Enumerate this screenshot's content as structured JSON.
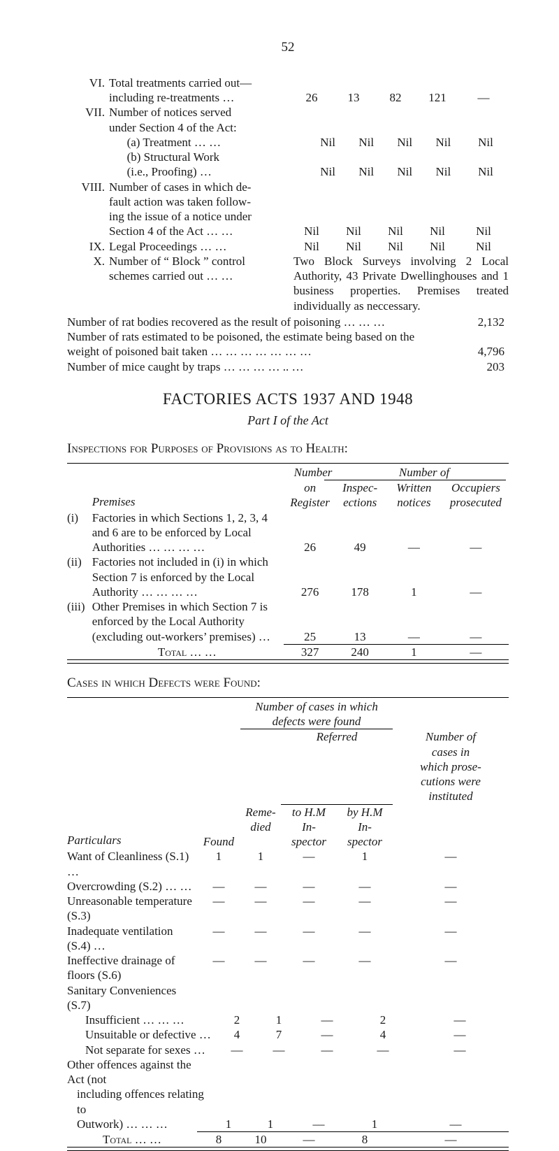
{
  "page_number": "52",
  "top_items": [
    {
      "num": "VI.",
      "label": "Total treatments carried out—",
      "cols": [
        "",
        "",
        "",
        "",
        ""
      ]
    },
    {
      "num": "",
      "label": "including re-treatments   …",
      "cols": [
        "26",
        "13",
        "82",
        "121",
        "—"
      ]
    },
    {
      "num": "VII.",
      "label": "Number of notices served",
      "cols": [
        "",
        "",
        "",
        "",
        ""
      ]
    },
    {
      "num": "",
      "label": "under Section 4 of the Act:",
      "cols": [
        "",
        "",
        "",
        "",
        ""
      ]
    },
    {
      "num": "",
      "label": "(a) Treatment      …      …",
      "indent": true,
      "cols": [
        "Nil",
        "Nil",
        "Nil",
        "Nil",
        "Nil"
      ]
    },
    {
      "num": "",
      "label": "(b) Structural Work",
      "indent": true,
      "cols": [
        "",
        "",
        "",
        "",
        ""
      ]
    },
    {
      "num": "",
      "label": "     (i.e., Proofing)      …",
      "indent": true,
      "cols": [
        "Nil",
        "Nil",
        "Nil",
        "Nil",
        "Nil"
      ]
    },
    {
      "num": "VIII.",
      "label": "Number of cases in which de-",
      "cols": [
        "",
        "",
        "",
        "",
        ""
      ]
    },
    {
      "num": "",
      "label": "fault action was taken follow-",
      "cols": [
        "",
        "",
        "",
        "",
        ""
      ]
    },
    {
      "num": "",
      "label": "ing the issue of a notice under",
      "cols": [
        "",
        "",
        "",
        "",
        ""
      ]
    },
    {
      "num": "",
      "label": "Section 4 of the Act …   …",
      "cols": [
        "Nil",
        "Nil",
        "Nil",
        "Nil",
        "Nil"
      ]
    },
    {
      "num": "IX.",
      "label": "Legal Proceedings   …   …",
      "cols": [
        "Nil",
        "Nil",
        "Nil",
        "Nil",
        "Nil"
      ]
    }
  ],
  "item_x": {
    "num": "X.",
    "label": "Number of “ Block ” control schemes carried out …   …",
    "note": "Two Block Surveys involving 2 Local Authority, 43 Private Dwellinghouses and 1 business properties. Premises treated individually as neccessary."
  },
  "summary_lines": [
    {
      "text": "Number of rat bodies recovered as the result of poisoning      …      …      …",
      "val": "2,132"
    },
    {
      "text": "Number of rats estimated to be poisoned, the estimate being based on the",
      "val": ""
    },
    {
      "text": "   weight of poisoned bait taken …      …      …      …      …      …      …",
      "val": "4,796"
    },
    {
      "text": "Number of mice caught by traps                     …      …      …      …      ..      …",
      "val": "203"
    }
  ],
  "h2": "FACTORIES ACTS 1937 AND 1948",
  "subtitle": "Part I of the Act",
  "t1_title": "Inspections for Purposes of Provisions as to Health:",
  "t1_head": {
    "number_of": "Number of",
    "premises": "Premises",
    "number_on_register": "Number\non\nRegister",
    "inspections": "Inspec-\nections",
    "written": "Written\nnotices",
    "occupiers": "Occupiers\nprosecuted"
  },
  "t1_rows": [
    {
      "rn": "(i)",
      "prem": "Factories in which Sections 1, 2, 3, 4 and 6 are to be enforced by Local Authorities      …      …      …      …",
      "c": [
        "26",
        "49",
        "—",
        "—"
      ]
    },
    {
      "rn": "(ii)",
      "prem": "Factories not included in (i) in which Section 7 is enforced by the Local Authority      …      …      …      …",
      "c": [
        "276",
        "178",
        "1",
        "—"
      ]
    },
    {
      "rn": "(iii)",
      "prem": "Other Premises in which Section 7 is enforced by the Local Authority (excluding out-workers’ premises)   …",
      "c": [
        "25",
        "13",
        "—",
        "—"
      ]
    }
  ],
  "t1_total": {
    "label": "Total   …   …",
    "c": [
      "327",
      "240",
      "1",
      "—"
    ]
  },
  "t2_title": "Cases in which Defects were Found:",
  "t2_head": {
    "ncwhich": "Number of cases in which\ndefects were found",
    "particulars": "Particulars",
    "found": "Found",
    "remedied": "Reme-\ndied",
    "referred": "Referred",
    "tohm": "to H.M\nIn-\nspector",
    "byhm": "by H.M\nIn-\nspector",
    "numcases": "Number of\ncases in\nwhich prose-\ncutions were\ninstituted"
  },
  "t2_rows": [
    {
      "p": "Want of Cleanliness (S.1)    …",
      "c": [
        "1",
        "1",
        "—",
        "1",
        "—"
      ]
    },
    {
      "p": "Overcrowding (S.2)       …    …",
      "c": [
        "—",
        "—",
        "—",
        "—",
        "—"
      ]
    },
    {
      "p": "Unreasonable temperature (S.3)",
      "c": [
        "—",
        "—",
        "—",
        "—",
        "—"
      ]
    },
    {
      "p": "Inadequate ventilation (S.4)   …",
      "c": [
        "—",
        "—",
        "—",
        "—",
        "—"
      ]
    },
    {
      "p": "Ineffective drainage of floors (S.6)",
      "c": [
        "—",
        "—",
        "—",
        "—",
        "—"
      ]
    },
    {
      "p": "Sanitary Conveniences (S.7)",
      "c": [
        "",
        "",
        "",
        "",
        ""
      ]
    },
    {
      "p": "Insufficient …   …   …",
      "indent": true,
      "c": [
        "2",
        "1",
        "—",
        "2",
        "—"
      ]
    },
    {
      "p": "Unsuitable or defective   …",
      "indent": true,
      "c": [
        "4",
        "7",
        "—",
        "4",
        "—"
      ]
    },
    {
      "p": "Not separate for sexes   …",
      "indent": true,
      "c": [
        "—",
        "—",
        "—",
        "—",
        "—"
      ]
    },
    {
      "p": "Other offences against the Act (not",
      "c": [
        "",
        "",
        "",
        "",
        ""
      ]
    },
    {
      "p": "including offences relating to",
      "indent6": true,
      "c": [
        "",
        "",
        "",
        "",
        ""
      ]
    },
    {
      "p": "Outwork)     …   …   …",
      "indent6": true,
      "c": [
        "1",
        "1",
        "—",
        "1",
        "—"
      ]
    }
  ],
  "t2_total": {
    "label": "Total   …   …",
    "c": [
      "8",
      "10",
      "—",
      "8",
      "—"
    ]
  }
}
